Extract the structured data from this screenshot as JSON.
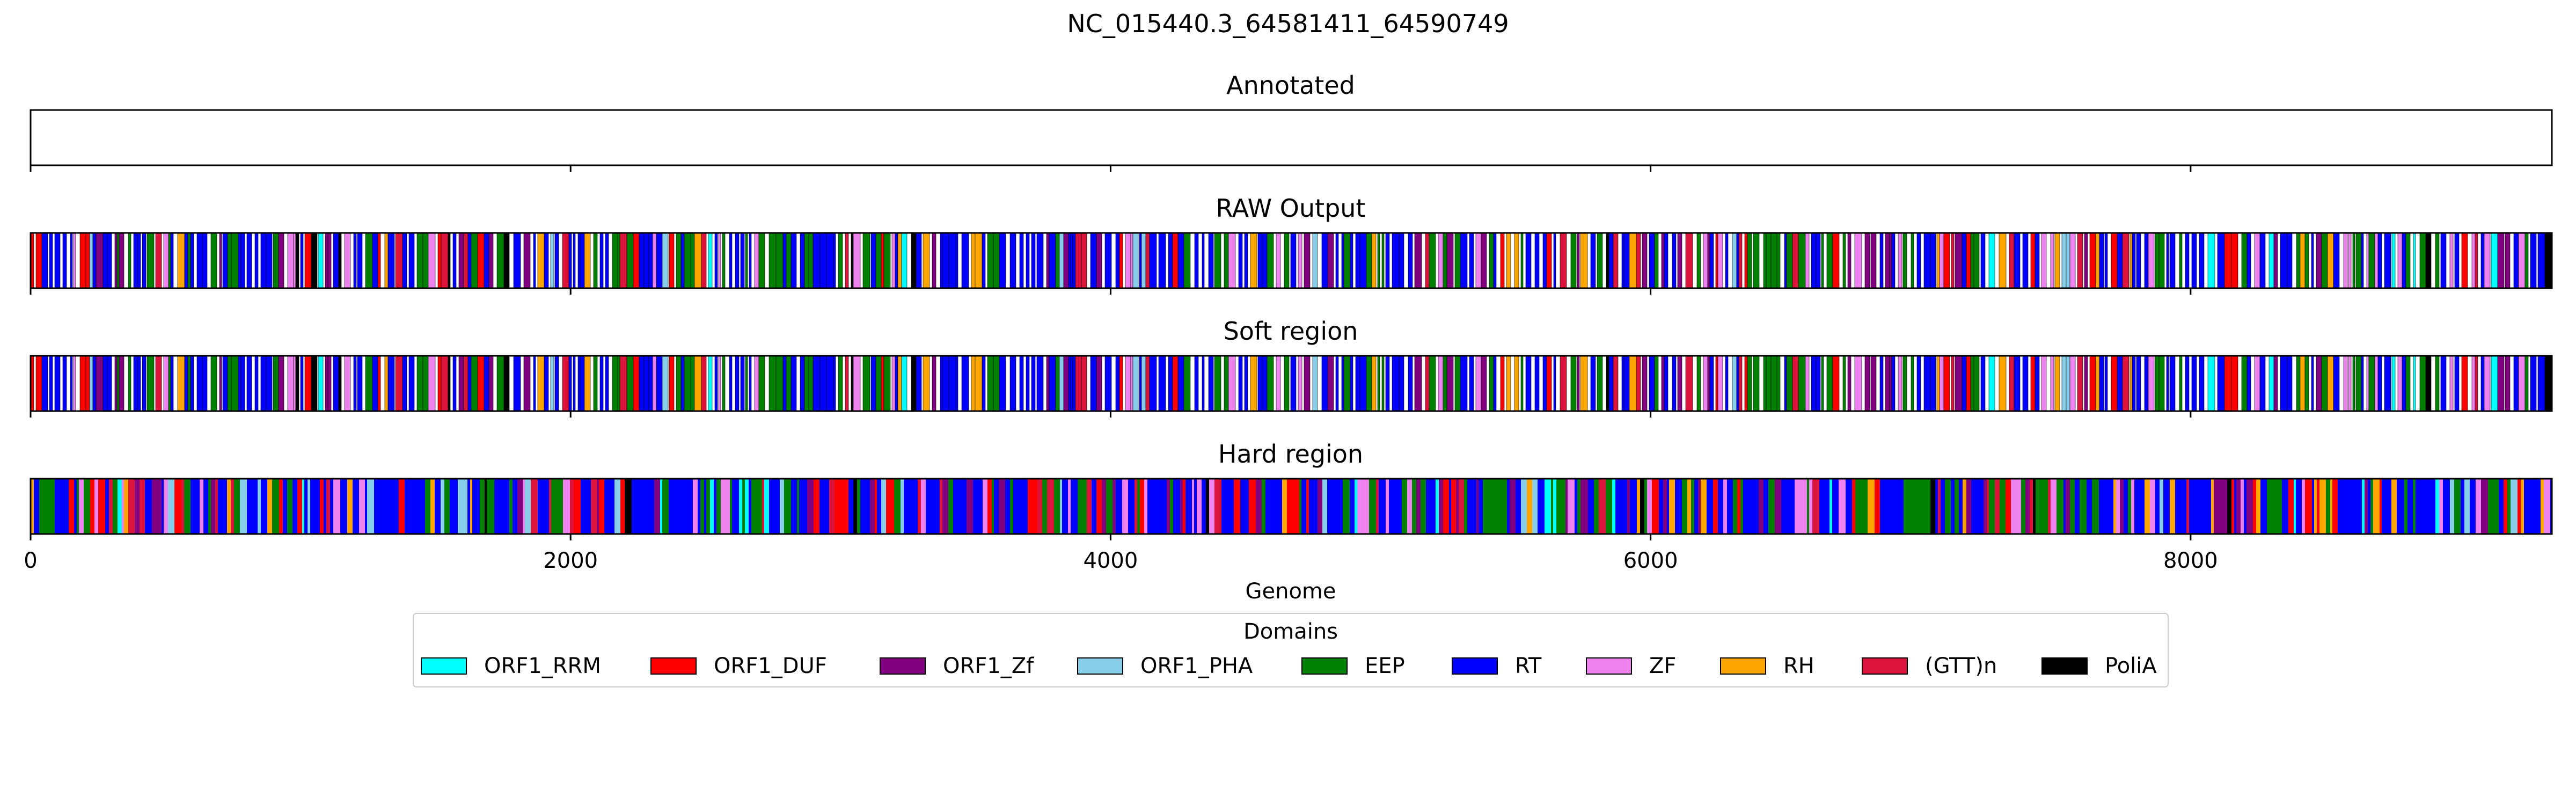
{
  "chart_data": {
    "type": "track",
    "title": "NC_015440.3_64581411_64590749",
    "xlabel": "Genome",
    "xlim": [
      0,
      9338
    ],
    "xticks": [
      0,
      2000,
      4000,
      6000,
      8000
    ],
    "tracks": [
      {
        "name": "Annotated",
        "kind": "empty",
        "seed": 0
      },
      {
        "name": "RAW Output",
        "kind": "dense",
        "seed": 11
      },
      {
        "name": "Soft region",
        "kind": "dense",
        "seed": 11
      },
      {
        "name": "Hard region",
        "kind": "full",
        "seed": 29
      }
    ],
    "legend": {
      "title": "Domains",
      "placement": "lower-center",
      "items": [
        {
          "label": "ORF1_RRM",
          "color": "#00ffff"
        },
        {
          "label": "ORF1_DUF",
          "color": "#ff0000"
        },
        {
          "label": "ORF1_Zf",
          "color": "#800080"
        },
        {
          "label": "ORF1_PHA",
          "color": "#87ceeb"
        },
        {
          "label": "EEP",
          "color": "#008000"
        },
        {
          "label": "RT",
          "color": "#0000ff"
        },
        {
          "label": "ZF",
          "color": "#ee82ee"
        },
        {
          "label": "RH",
          "color": "#ffa500"
        },
        {
          "label": "(GTT)n",
          "color": "#dc143c"
        },
        {
          "label": "PoliA",
          "color": "#000000"
        }
      ]
    }
  }
}
